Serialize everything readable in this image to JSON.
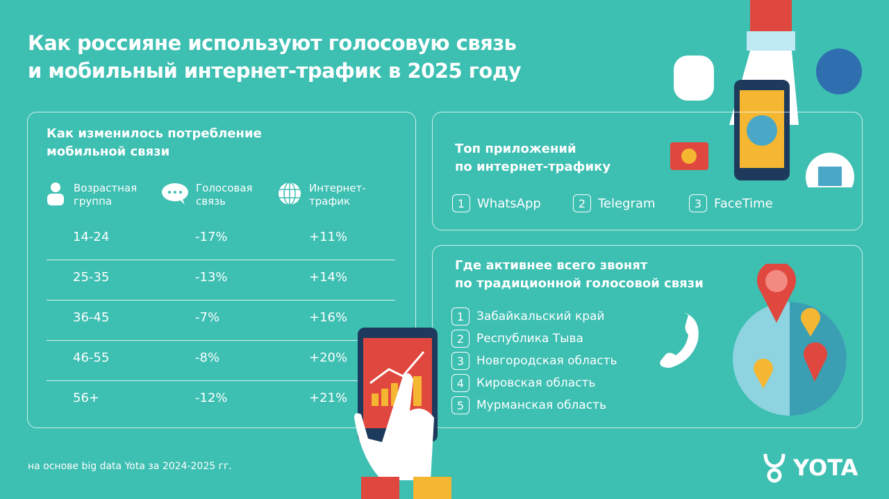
{
  "title_line1": "Как россияне используют голосовую связь",
  "title_line2": "и мобильный интернет-трафик в 2025 году",
  "consumption": {
    "title_line1": "Как изменилось потребление",
    "title_line2": "мобильной связи",
    "headers": [
      {
        "l1": "Возрастная",
        "l2": "группа",
        "icon": "person-icon"
      },
      {
        "l1": "Голосовая",
        "l2": "связь",
        "icon": "speech-bubble-icon"
      },
      {
        "l1": "Интернет-",
        "l2": "трафик",
        "icon": "globe-icon"
      }
    ],
    "rows": [
      {
        "age": "14-24",
        "voice": "-17%",
        "internet": "+11%"
      },
      {
        "age": "25-35",
        "voice": "-13%",
        "internet": "+14%"
      },
      {
        "age": "36-45",
        "voice": "-7%",
        "internet": "+16%"
      },
      {
        "age": "46-55",
        "voice": "-8%",
        "internet": "+20%"
      },
      {
        "age": "56+",
        "voice": "-12%",
        "internet": "+21%"
      }
    ]
  },
  "top_apps": {
    "title_line1": "Топ приложений",
    "title_line2": "по интернет-трафику",
    "items": [
      {
        "n": "1",
        "name": "WhatsApp"
      },
      {
        "n": "2",
        "name": "Telegram"
      },
      {
        "n": "3",
        "name": "FaceTime"
      }
    ]
  },
  "regions": {
    "title_line1": "Где активнее всего звонят",
    "title_line2": "по традиционной голосовой связи",
    "items": [
      {
        "n": "1",
        "name": "Забайкальский край"
      },
      {
        "n": "2",
        "name": "Республика Тыва"
      },
      {
        "n": "3",
        "name": "Новгородская область"
      },
      {
        "n": "4",
        "name": "Кировская область"
      },
      {
        "n": "5",
        "name": "Мурманская область"
      }
    ]
  },
  "footnote": "на основе big data Yota за 2024-2025 гг.",
  "brand": "YOTA",
  "colors": {
    "background": "#3dbfb2",
    "accent_red": "#e0473e",
    "accent_yellow": "#f5b731",
    "phone_navy": "#1d3a5c"
  }
}
